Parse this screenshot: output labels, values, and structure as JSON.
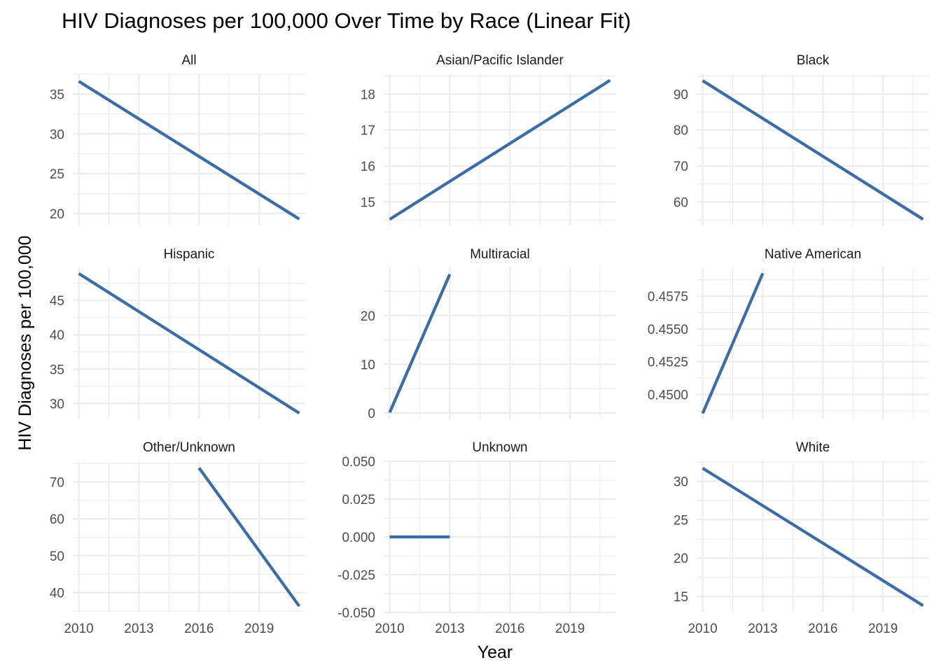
{
  "chart_data": {
    "type": "line",
    "title": "HIV Diagnoses per 100,000 Over Time by Race (Linear Fit)",
    "xlabel": "Year",
    "ylabel": "HIV Diagnoses per 100,000",
    "line_color": "#3c6ea5",
    "grid": true,
    "x_ticks": [
      2010,
      2013,
      2016,
      2019
    ],
    "xlim": [
      2009.7,
      2021.3
    ],
    "panels": [
      {
        "name": "All",
        "x": [
          2010,
          2021
        ],
        "y": [
          36.6,
          19.3
        ],
        "ylim": [
          18.5,
          37.5
        ],
        "y_ticks": [
          20,
          25,
          30,
          35
        ],
        "y_tick_labels": [
          "20",
          "25",
          "30",
          "35"
        ]
      },
      {
        "name": "Asian/Pacific Islander",
        "x": [
          2010,
          2021
        ],
        "y": [
          14.52,
          18.38
        ],
        "ylim": [
          14.35,
          18.55
        ],
        "y_ticks": [
          15,
          16,
          17,
          18
        ],
        "y_tick_labels": [
          "15",
          "16",
          "17",
          "18"
        ]
      },
      {
        "name": "Black",
        "x": [
          2010,
          2021
        ],
        "y": [
          93.7,
          55.2
        ],
        "ylim": [
          53.5,
          95.5
        ],
        "y_ticks": [
          60,
          70,
          80,
          90
        ],
        "y_tick_labels": [
          "60",
          "70",
          "80",
          "90"
        ]
      },
      {
        "name": "Hispanic",
        "x": [
          2010,
          2021
        ],
        "y": [
          48.9,
          28.6
        ],
        "ylim": [
          27.7,
          49.8
        ],
        "y_ticks": [
          30,
          35,
          40,
          45
        ],
        "y_tick_labels": [
          "30",
          "35",
          "40",
          "45"
        ]
      },
      {
        "name": "Multiracial",
        "x": [
          2010,
          2013
        ],
        "y": [
          0.1,
          28.5
        ],
        "ylim": [
          -1.3,
          29.9
        ],
        "y_ticks": [
          0,
          10,
          20
        ],
        "y_tick_labels": [
          "0",
          "10",
          "20"
        ]
      },
      {
        "name": "Native American",
        "x": [
          2010,
          2013
        ],
        "y": [
          0.44855,
          0.45925
        ],
        "ylim": [
          0.4481,
          0.4597
        ],
        "y_ticks": [
          0.45,
          0.4525,
          0.455,
          0.4575
        ],
        "y_tick_labels": [
          "0.4500",
          "0.4525",
          "0.4550",
          "0.4575"
        ]
      },
      {
        "name": "Other/Unknown",
        "x": [
          2016,
          2021
        ],
        "y": [
          73.8,
          36.3
        ],
        "ylim": [
          34.6,
          75.6
        ],
        "y_ticks": [
          40,
          50,
          60,
          70
        ],
        "y_tick_labels": [
          "40",
          "50",
          "60",
          "70"
        ]
      },
      {
        "name": "Unknown",
        "x": [
          2010,
          2013
        ],
        "y": [
          0,
          0
        ],
        "ylim": [
          -0.05,
          0.05
        ],
        "y_ticks": [
          -0.05,
          -0.025,
          0,
          0.025,
          0.05
        ],
        "y_tick_labels": [
          "-0.050",
          "-0.025",
          "0.000",
          "0.025",
          "0.050"
        ]
      },
      {
        "name": "White",
        "x": [
          2010,
          2021
        ],
        "y": [
          31.7,
          13.8
        ],
        "ylim": [
          12.9,
          32.6
        ],
        "y_ticks": [
          15,
          20,
          25,
          30
        ],
        "y_tick_labels": [
          "15",
          "20",
          "25",
          "30"
        ]
      }
    ]
  }
}
